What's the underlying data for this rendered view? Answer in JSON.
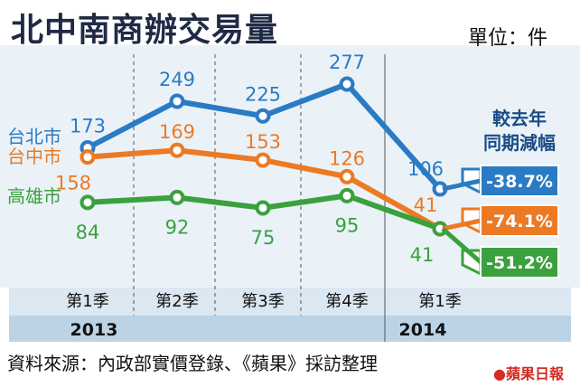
{
  "title": "北中南商辦交易量",
  "unit_label": "單位：件",
  "comparison_title": [
    "較去年",
    "同期減幅"
  ],
  "source": "資料來源：內政部實價登錄、《蘋果》採訪整理",
  "logo": "蘋果日報",
  "chart_data": {
    "type": "line",
    "categories": [
      "第1季",
      "第2季",
      "第3季",
      "第4季",
      "第1季"
    ],
    "years": [
      {
        "label": "2013",
        "quarters": 4
      },
      {
        "label": "2014",
        "quarters": 1
      }
    ],
    "series": [
      {
        "name": "台北市",
        "values": [
          173,
          249,
          225,
          277,
          106
        ],
        "color": "#2b7bc4",
        "yoy_change": "-38.7%"
      },
      {
        "name": "台中市",
        "values": [
          158,
          169,
          153,
          126,
          41
        ],
        "color": "#ec7a24",
        "yoy_change": "-74.1%"
      },
      {
        "name": "高雄市",
        "values": [
          84,
          92,
          75,
          95,
          41
        ],
        "color": "#3ba03e",
        "yoy_change": "-51.2%"
      }
    ],
    "grid": true
  }
}
